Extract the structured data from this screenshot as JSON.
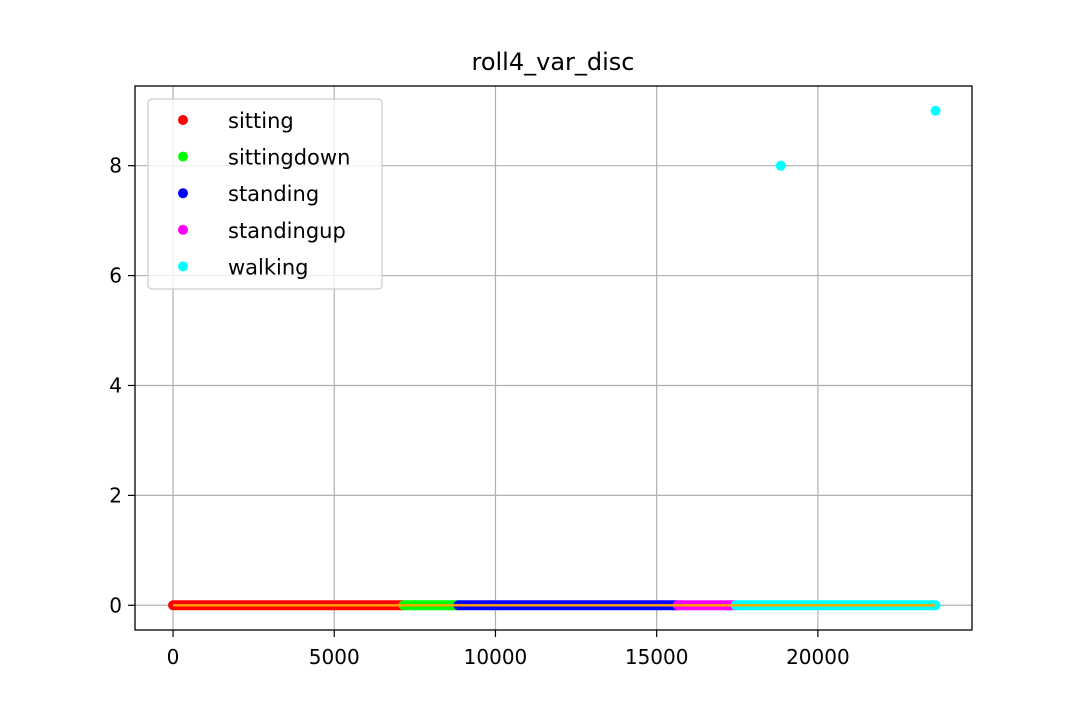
{
  "chart_data": {
    "type": "scatter",
    "title": "roll4_var_disc",
    "xlabel": "",
    "ylabel": "",
    "xlim": [
      -1180,
      24780
    ],
    "ylim": [
      -0.45,
      9.45
    ],
    "xticks": [
      0,
      5000,
      10000,
      15000,
      20000
    ],
    "xtick_labels": [
      "0",
      "5000",
      "10000",
      "15000",
      "20000"
    ],
    "yticks": [
      0,
      2,
      4,
      6,
      8
    ],
    "ytick_labels": [
      "0",
      "2",
      "4",
      "6",
      "8"
    ],
    "grid": true,
    "legend_position": "top-left",
    "baseline_color": "#ffa500",
    "series": [
      {
        "name": "sitting",
        "color": "#ff0000",
        "x_range": [
          0,
          7150
        ],
        "y": 0,
        "points": []
      },
      {
        "name": "sittingdown",
        "color": "#00ff00",
        "x_range": [
          7150,
          8850
        ],
        "y": 0,
        "points": []
      },
      {
        "name": "standing",
        "color": "#0000ff",
        "x_range": [
          8850,
          15650
        ],
        "y": 0,
        "points": []
      },
      {
        "name": "standingup",
        "color": "#ff00ff",
        "x_range": [
          15650,
          17450
        ],
        "y": 0,
        "points": []
      },
      {
        "name": "walking",
        "color": "#00ffff",
        "x_range": [
          17450,
          23650
        ],
        "y": 0,
        "points": [
          {
            "x": 18850,
            "y": 8
          },
          {
            "x": 23650,
            "y": 9
          }
        ]
      }
    ]
  }
}
